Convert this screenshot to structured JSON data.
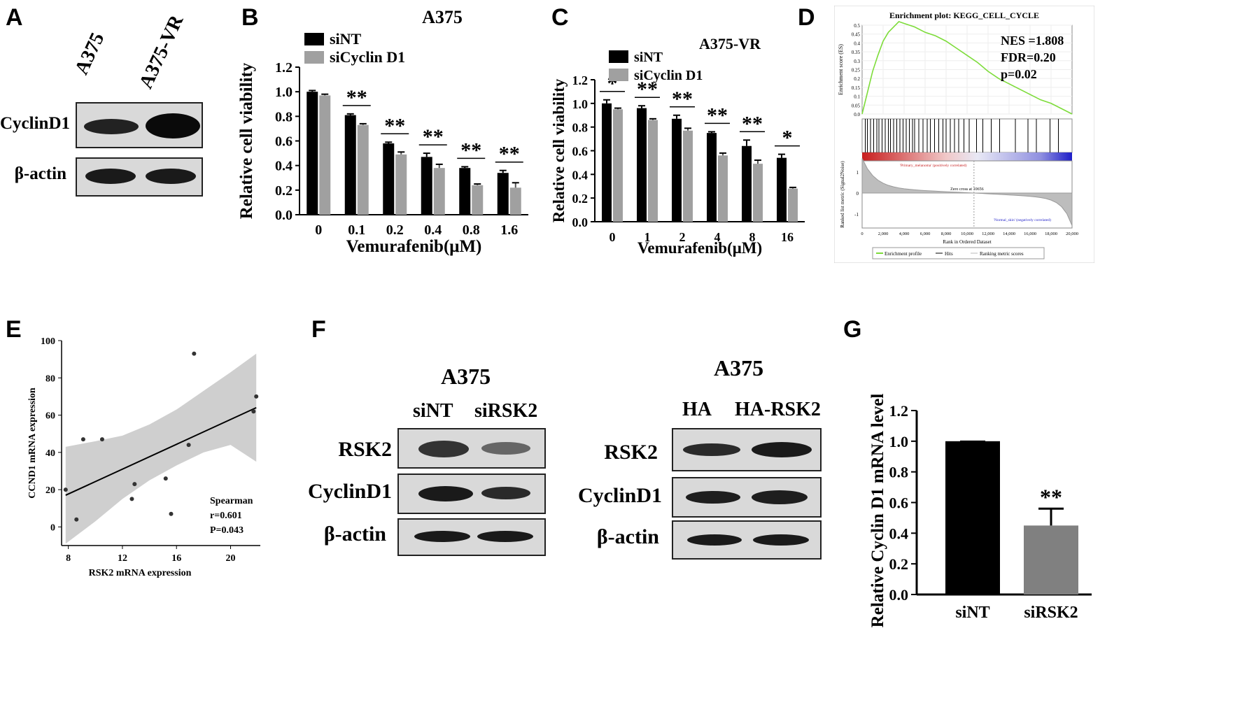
{
  "panel_labels": {
    "A": "A",
    "B": "B",
    "C": "C",
    "D": "D",
    "E": "E",
    "F": "F",
    "G": "G"
  },
  "panelA": {
    "lanes": [
      "A375",
      "A375-VR"
    ],
    "rows": [
      "CyclinD1",
      "β-actin"
    ]
  },
  "panelF": {
    "left_title": "A375",
    "left_lanes": [
      "siNT",
      "siRSK2"
    ],
    "right_title": "A375",
    "right_lanes": [
      "HA",
      "HA-RSK2"
    ],
    "rows": [
      "RSK2",
      "CyclinD1",
      "β-actin"
    ]
  },
  "panelD": {
    "title": "Enrichment plot: KEGG_CELL_CYCLE",
    "stats": [
      "NES =1.808",
      "FDR=0.20",
      "p=0.02"
    ],
    "ylabel_top": "Enrichment score (ES)",
    "ylabel_bottom": "Ranked list metric (Signal2Noise)",
    "xlabel": "Rank in Ordered Dataset",
    "pos_label": "'Primary_melanoma' (positively correlated)",
    "neg_label": "'Normal_skin' (negatively correlated)",
    "zero_cross": "Zero cross at 10656",
    "legend": [
      "Enrichment profile",
      "Hits",
      "Ranking metric scores"
    ],
    "colors": {
      "profile": "#7ddc3a",
      "pos": "#c81e1e",
      "neg": "#1e1ec8"
    }
  },
  "panelE_text": {
    "stat": [
      "Spearman",
      "r=0.601",
      "P=0.043"
    ]
  },
  "chart_data": [
    {
      "panel": "B",
      "type": "bar",
      "title": "A375",
      "xlabel": "Vemurafenib(μM)",
      "ylabel": "Relative cell viability",
      "categories": [
        "0",
        "0.1",
        "0.2",
        "0.4",
        "0.8",
        "1.6"
      ],
      "ylim": [
        0,
        1.2
      ],
      "yticks": [
        "0.0",
        "0.2",
        "0.4",
        "0.6",
        "0.8",
        "1.0",
        "1.2"
      ],
      "series": [
        {
          "name": "siNT",
          "color": "#000000",
          "values": [
            1.0,
            0.81,
            0.58,
            0.47,
            0.38,
            0.34
          ],
          "errors": [
            0.01,
            0.01,
            0.01,
            0.03,
            0.01,
            0.02
          ]
        },
        {
          "name": "siCyclin D1",
          "color": "#a0a0a0",
          "values": [
            0.97,
            0.73,
            0.49,
            0.38,
            0.24,
            0.22
          ],
          "errors": [
            0.01,
            0.01,
            0.02,
            0.03,
            0.01,
            0.04
          ]
        }
      ],
      "significance": [
        "",
        "**",
        "**",
        "**",
        "**",
        "**"
      ]
    },
    {
      "panel": "C",
      "type": "bar",
      "title": "A375-VR",
      "xlabel": "Vemurafenib(μM)",
      "ylabel": "Relative cell viability",
      "categories": [
        "0",
        "1",
        "2",
        "4",
        "8",
        "16"
      ],
      "ylim": [
        0,
        1.2
      ],
      "yticks": [
        "0.0",
        "0.2",
        "0.4",
        "0.6",
        "0.8",
        "1.0",
        "1.2"
      ],
      "series": [
        {
          "name": "siNT",
          "color": "#000000",
          "values": [
            1.0,
            0.96,
            0.87,
            0.75,
            0.64,
            0.54
          ],
          "errors": [
            0.03,
            0.02,
            0.03,
            0.01,
            0.05,
            0.03
          ]
        },
        {
          "name": "siCyclin D1",
          "color": "#a0a0a0",
          "values": [
            0.95,
            0.86,
            0.77,
            0.56,
            0.49,
            0.28
          ],
          "errors": [
            0.01,
            0.01,
            0.02,
            0.02,
            0.03,
            0.01
          ]
        }
      ],
      "significance": [
        "*",
        "**",
        "**",
        "**",
        "**",
        "*"
      ]
    },
    {
      "panel": "D",
      "type": "line",
      "title": "Enrichment plot: KEGG_CELL_CYCLE",
      "xlabel": "Rank in Ordered Dataset",
      "ylabel": "Enrichment score (ES)",
      "xlim": [
        0,
        20000
      ],
      "ylim": [
        0,
        0.5
      ],
      "xticks": [
        "0",
        "2,000",
        "4,000",
        "6,000",
        "8,000",
        "10,000",
        "12,000",
        "14,000",
        "16,000",
        "18,000",
        "20,000"
      ],
      "yticks": [
        "0.0",
        "0.05",
        "0.1",
        "0.15",
        "0.2",
        "0.25",
        "0.3",
        "0.35",
        "0.4",
        "0.45",
        "0.5"
      ],
      "metric_yticks": [
        "1",
        "0",
        "-1"
      ],
      "series": [
        {
          "name": "Enrichment profile",
          "x": [
            0,
            500,
            1000,
            1500,
            2000,
            2500,
            3000,
            3500,
            4000,
            5000,
            6000,
            7000,
            8000,
            9000,
            10000,
            11000,
            12000,
            13000,
            14000,
            15000,
            16000,
            17000,
            18000,
            19000,
            20000
          ],
          "y": [
            0.0,
            0.12,
            0.24,
            0.33,
            0.41,
            0.46,
            0.49,
            0.52,
            0.51,
            0.49,
            0.46,
            0.44,
            0.41,
            0.37,
            0.33,
            0.29,
            0.24,
            0.2,
            0.17,
            0.14,
            0.11,
            0.08,
            0.06,
            0.03,
            0.0
          ]
        }
      ]
    },
    {
      "panel": "E",
      "type": "scatter",
      "xlabel": "RSK2 mRNA expression",
      "ylabel": "CCND1 mRNA expression",
      "xlim": [
        7.5,
        22.2
      ],
      "ylim": [
        -10,
        100
      ],
      "xticks": [
        "8",
        "12",
        "16",
        "20"
      ],
      "yticks": [
        "0",
        "20",
        "40",
        "60",
        "80",
        "100"
      ],
      "points": [
        [
          7.8,
          20
        ],
        [
          8.6,
          4
        ],
        [
          9.1,
          47
        ],
        [
          10.5,
          47
        ],
        [
          12.7,
          15
        ],
        [
          12.9,
          23
        ],
        [
          15.2,
          26
        ],
        [
          15.6,
          7
        ],
        [
          16.9,
          44
        ],
        [
          17.3,
          93
        ],
        [
          21.7,
          62
        ],
        [
          21.9,
          70
        ]
      ],
      "fit": {
        "x": [
          7.8,
          21.9
        ],
        "y": [
          17,
          64
        ]
      },
      "band_upper": [
        [
          7.8,
          43
        ],
        [
          10,
          46
        ],
        [
          12,
          49
        ],
        [
          14,
          55
        ],
        [
          16,
          63
        ],
        [
          18,
          73
        ],
        [
          20,
          83
        ],
        [
          21.9,
          93
        ]
      ],
      "band_lower": [
        [
          7.8,
          -9
        ],
        [
          10,
          3
        ],
        [
          12,
          15
        ],
        [
          14,
          25
        ],
        [
          16,
          33
        ],
        [
          18,
          40
        ],
        [
          20,
          44
        ],
        [
          21.9,
          35
        ]
      ]
    },
    {
      "panel": "G",
      "type": "bar",
      "ylabel": "Relative Cyclin D1 mRNA level",
      "categories": [
        "siNT",
        "siRSK2"
      ],
      "ylim": [
        0,
        1.2
      ],
      "yticks": [
        "0.0",
        "0.2",
        "0.4",
        "0.6",
        "0.8",
        "1.0",
        "1.2"
      ],
      "values": [
        1.0,
        0.45
      ],
      "errors": [
        0.0,
        0.11
      ],
      "colors": [
        "#000000",
        "#808080"
      ],
      "significance": [
        "",
        "**"
      ]
    }
  ]
}
